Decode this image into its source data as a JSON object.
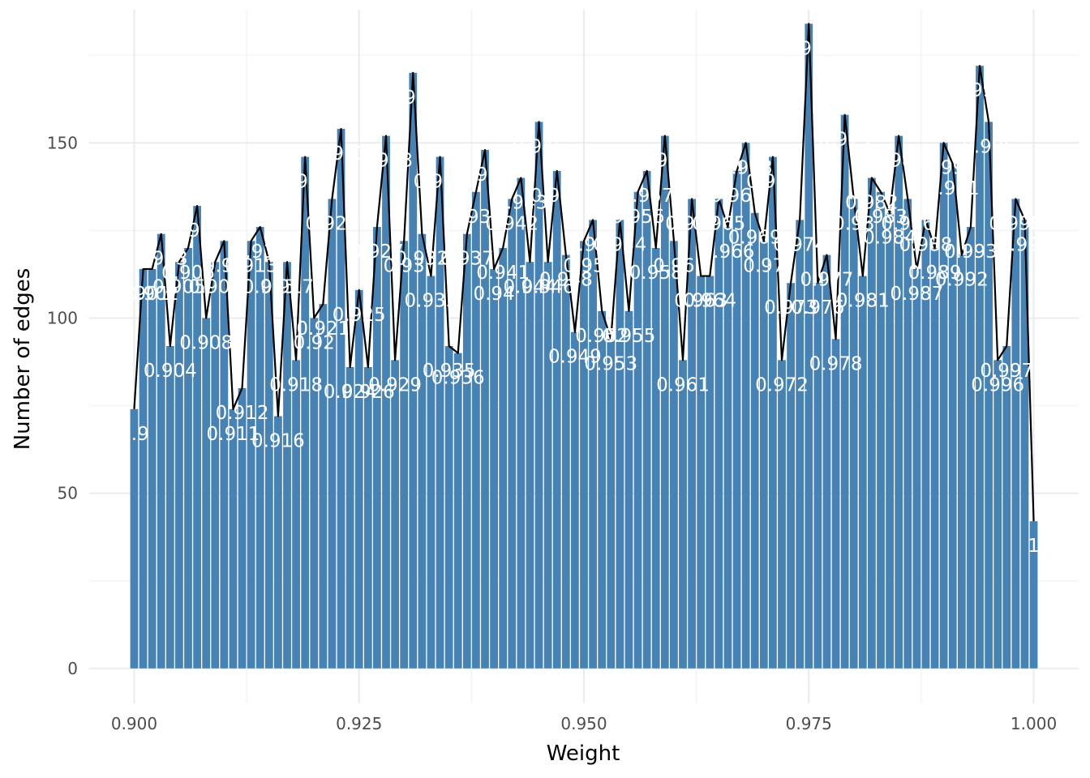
{
  "chart_data": {
    "type": "bar",
    "xlabel": "Weight",
    "ylabel": "Number of edges",
    "xlim": [
      0.895,
      1.005
    ],
    "ylim": [
      -10,
      188
    ],
    "x_ticks": [
      0.9,
      0.925,
      0.95,
      0.975,
      1.0
    ],
    "x_tick_labels": [
      "0.900",
      "0.925",
      "0.950",
      "0.975",
      "1.000"
    ],
    "y_ticks": [
      0,
      50,
      100,
      150
    ],
    "y_tick_labels": [
      "0",
      "50",
      "100",
      "150"
    ],
    "grid": true,
    "bar_color": "#4682B4",
    "line_color": "#000000",
    "label_color": "#ffffff",
    "x": [
      0.9,
      0.901,
      0.902,
      0.903,
      0.904,
      0.905,
      0.906,
      0.907,
      0.908,
      0.909,
      0.91,
      0.911,
      0.912,
      0.913,
      0.914,
      0.915,
      0.916,
      0.917,
      0.918,
      0.919,
      0.92,
      0.921,
      0.922,
      0.923,
      0.924,
      0.925,
      0.926,
      0.927,
      0.928,
      0.929,
      0.93,
      0.931,
      0.932,
      0.933,
      0.934,
      0.935,
      0.936,
      0.937,
      0.938,
      0.939,
      0.94,
      0.941,
      0.942,
      0.943,
      0.944,
      0.945,
      0.946,
      0.947,
      0.948,
      0.949,
      0.95,
      0.951,
      0.952,
      0.953,
      0.954,
      0.955,
      0.956,
      0.957,
      0.958,
      0.959,
      0.96,
      0.961,
      0.962,
      0.963,
      0.964,
      0.965,
      0.966,
      0.967,
      0.968,
      0.969,
      0.97,
      0.971,
      0.972,
      0.973,
      0.974,
      0.975,
      0.976,
      0.977,
      0.978,
      0.979,
      0.98,
      0.981,
      0.982,
      0.983,
      0.984,
      0.985,
      0.986,
      0.987,
      0.988,
      0.989,
      0.99,
      0.991,
      0.992,
      0.993,
      0.994,
      0.995,
      0.996,
      0.997,
      0.998,
      0.999,
      1.0
    ],
    "values": [
      74,
      114,
      114,
      124,
      92,
      116,
      120,
      132,
      100,
      116,
      122,
      74,
      80,
      122,
      126,
      116,
      72,
      116,
      88,
      146,
      100,
      104,
      134,
      154,
      86,
      108,
      86,
      126,
      152,
      88,
      122,
      170,
      124,
      112,
      146,
      92,
      90,
      124,
      136,
      148,
      114,
      120,
      134,
      140,
      116,
      156,
      116,
      142,
      118,
      96,
      122,
      128,
      102,
      94,
      128,
      102,
      136,
      142,
      120,
      152,
      122,
      88,
      134,
      112,
      112,
      134,
      126,
      142,
      150,
      130,
      122,
      146,
      88,
      110,
      128,
      184,
      110,
      118,
      94,
      158,
      134,
      112,
      140,
      136,
      130,
      152,
      134,
      114,
      128,
      120,
      150,
      144,
      118,
      126,
      172,
      156,
      88,
      92,
      134,
      128,
      42
    ],
    "bar_labels": [
      "0.9",
      "0.901",
      "0.902",
      "0.903",
      "0.904",
      "0.905",
      "0.906",
      "0.907",
      "0.908",
      "0.909",
      "0.91",
      "0.911",
      "0.912",
      "0.913",
      "0.914",
      "0.915",
      "0.916",
      "0.917",
      "0.918",
      "0.919",
      "0.92",
      "0.921",
      "0.922",
      "0.923",
      "0.924",
      "0.925",
      "0.926",
      "0.927",
      "0.928",
      "0.929",
      "0.93",
      "0.931",
      "0.932",
      "0.933",
      "0.934",
      "0.935",
      "0.936",
      "0.937",
      "0.938",
      "0.939",
      "0.94",
      "0.941",
      "0.942",
      "0.943",
      "0.944",
      "0.945",
      "0.946",
      "0.947",
      "0.948",
      "0.949",
      "0.95",
      "0.951",
      "0.952",
      "0.953",
      "0.954",
      "0.955",
      "0.956",
      "0.957",
      "0.958",
      "0.959",
      "0.96",
      "0.961",
      "0.962",
      "0.963",
      "0.964",
      "0.965",
      "0.966",
      "0.967",
      "0.968",
      "0.969",
      "0.97",
      "0.971",
      "0.972",
      "0.973",
      "0.974",
      "0.975",
      "0.976",
      "0.977",
      "0.978",
      "0.979",
      "0.98",
      "0.981",
      "0.982",
      "0.983",
      "0.984",
      "0.985",
      "0.986",
      "0.987",
      "0.988",
      "0.989",
      "0.99",
      "0.991",
      "0.992",
      "0.993",
      "0.994",
      "0.995",
      "0.996",
      "0.997",
      "0.998",
      "0.999",
      "1"
    ]
  }
}
